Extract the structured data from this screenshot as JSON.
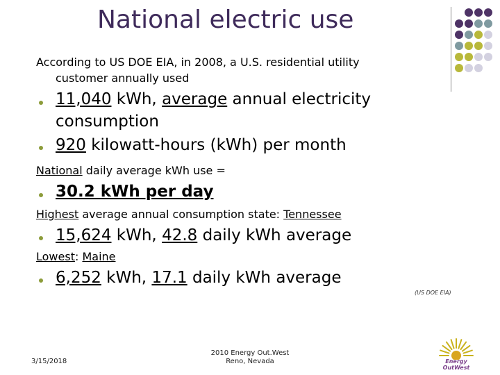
{
  "slide": {
    "title": "National electric use",
    "intro_line1": "According to US DOE EIA, in 2008, a U.S. residential utility",
    "intro_line2": "customer annually used",
    "b1_num": "11,040",
    "b1_unit": " kWh, ",
    "b1_avg": "average",
    "b1_rest": " annual electricity",
    "b1_line2": "consumption",
    "b2_num": "920",
    "b2_rest": " kilowatt-hours (kWh) per month",
    "national_word": "National",
    "national_rest": " daily average kWh use =",
    "daily_value": "30.2 kWh per day",
    "highest_word": "Highest",
    "highest_mid": " average annual consumption state: ",
    "highest_state": "Tennessee",
    "b4_num1": "15,624",
    "b4_mid": " kWh, ",
    "b4_num2": "42.8",
    "b4_rest": " daily kWh average",
    "lowest_word": "Lowest",
    "lowest_sep": ": ",
    "lowest_state": "Maine",
    "b5_num1": "6,252",
    "b5_mid": " kWh, ",
    "b5_num2": "17.1",
    "b5_rest": " daily kWh average",
    "source": "(US DOE EIA)"
  },
  "footer": {
    "date": "3/15/2018",
    "org_line1": "2010 Energy Out.West",
    "org_line2": "Reno, Nevada",
    "logo_text": "Energy OutWest"
  },
  "colors": {
    "title": "#3f2b5b",
    "dot_purple": "#4e3366",
    "dot_teal": "#7f9aa0",
    "dot_olive": "#b8b83a",
    "dot_lavender": "#d3d1e0",
    "bullet": "#8c9c3a"
  }
}
